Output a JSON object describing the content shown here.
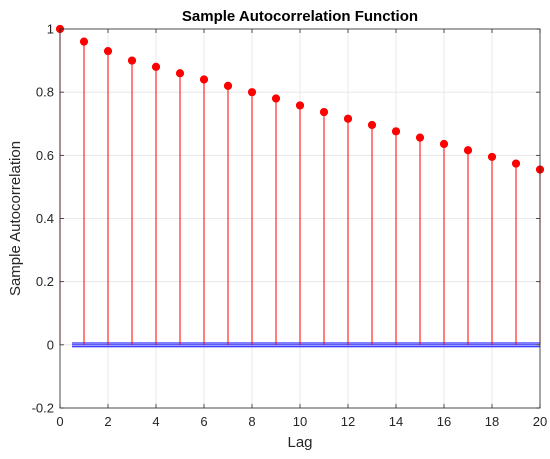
{
  "chart_data": {
    "type": "stem",
    "title": "Sample Autocorrelation Function",
    "xlabel": "Lag",
    "ylabel": "Sample Autocorrelation",
    "xlim": [
      0,
      20
    ],
    "ylim": [
      -0.2,
      1
    ],
    "xticks": [
      "0",
      "2",
      "4",
      "6",
      "8",
      "10",
      "12",
      "14",
      "16",
      "18",
      "20"
    ],
    "yticks": [
      "-0.2",
      "0",
      "0.2",
      "0.4",
      "0.6",
      "0.8",
      "1"
    ],
    "grid": true,
    "series": [
      {
        "color": "#ff0000",
        "x": [
          0,
          1,
          2,
          3,
          4,
          5,
          6,
          7,
          8,
          9,
          10,
          11,
          12,
          13,
          14,
          15,
          16,
          17,
          18,
          19,
          20
        ],
        "values": [
          1.0,
          0.96,
          0.93,
          0.9,
          0.88,
          0.86,
          0.84,
          0.82,
          0.8,
          0.78,
          0.758,
          0.737,
          0.716,
          0.696,
          0.676,
          0.656,
          0.636,
          0.616,
          0.595,
          0.574,
          0.555
        ]
      }
    ],
    "confidence_bounds": {
      "color": "#0000ff",
      "upper": 0.006,
      "lower": -0.006
    }
  }
}
